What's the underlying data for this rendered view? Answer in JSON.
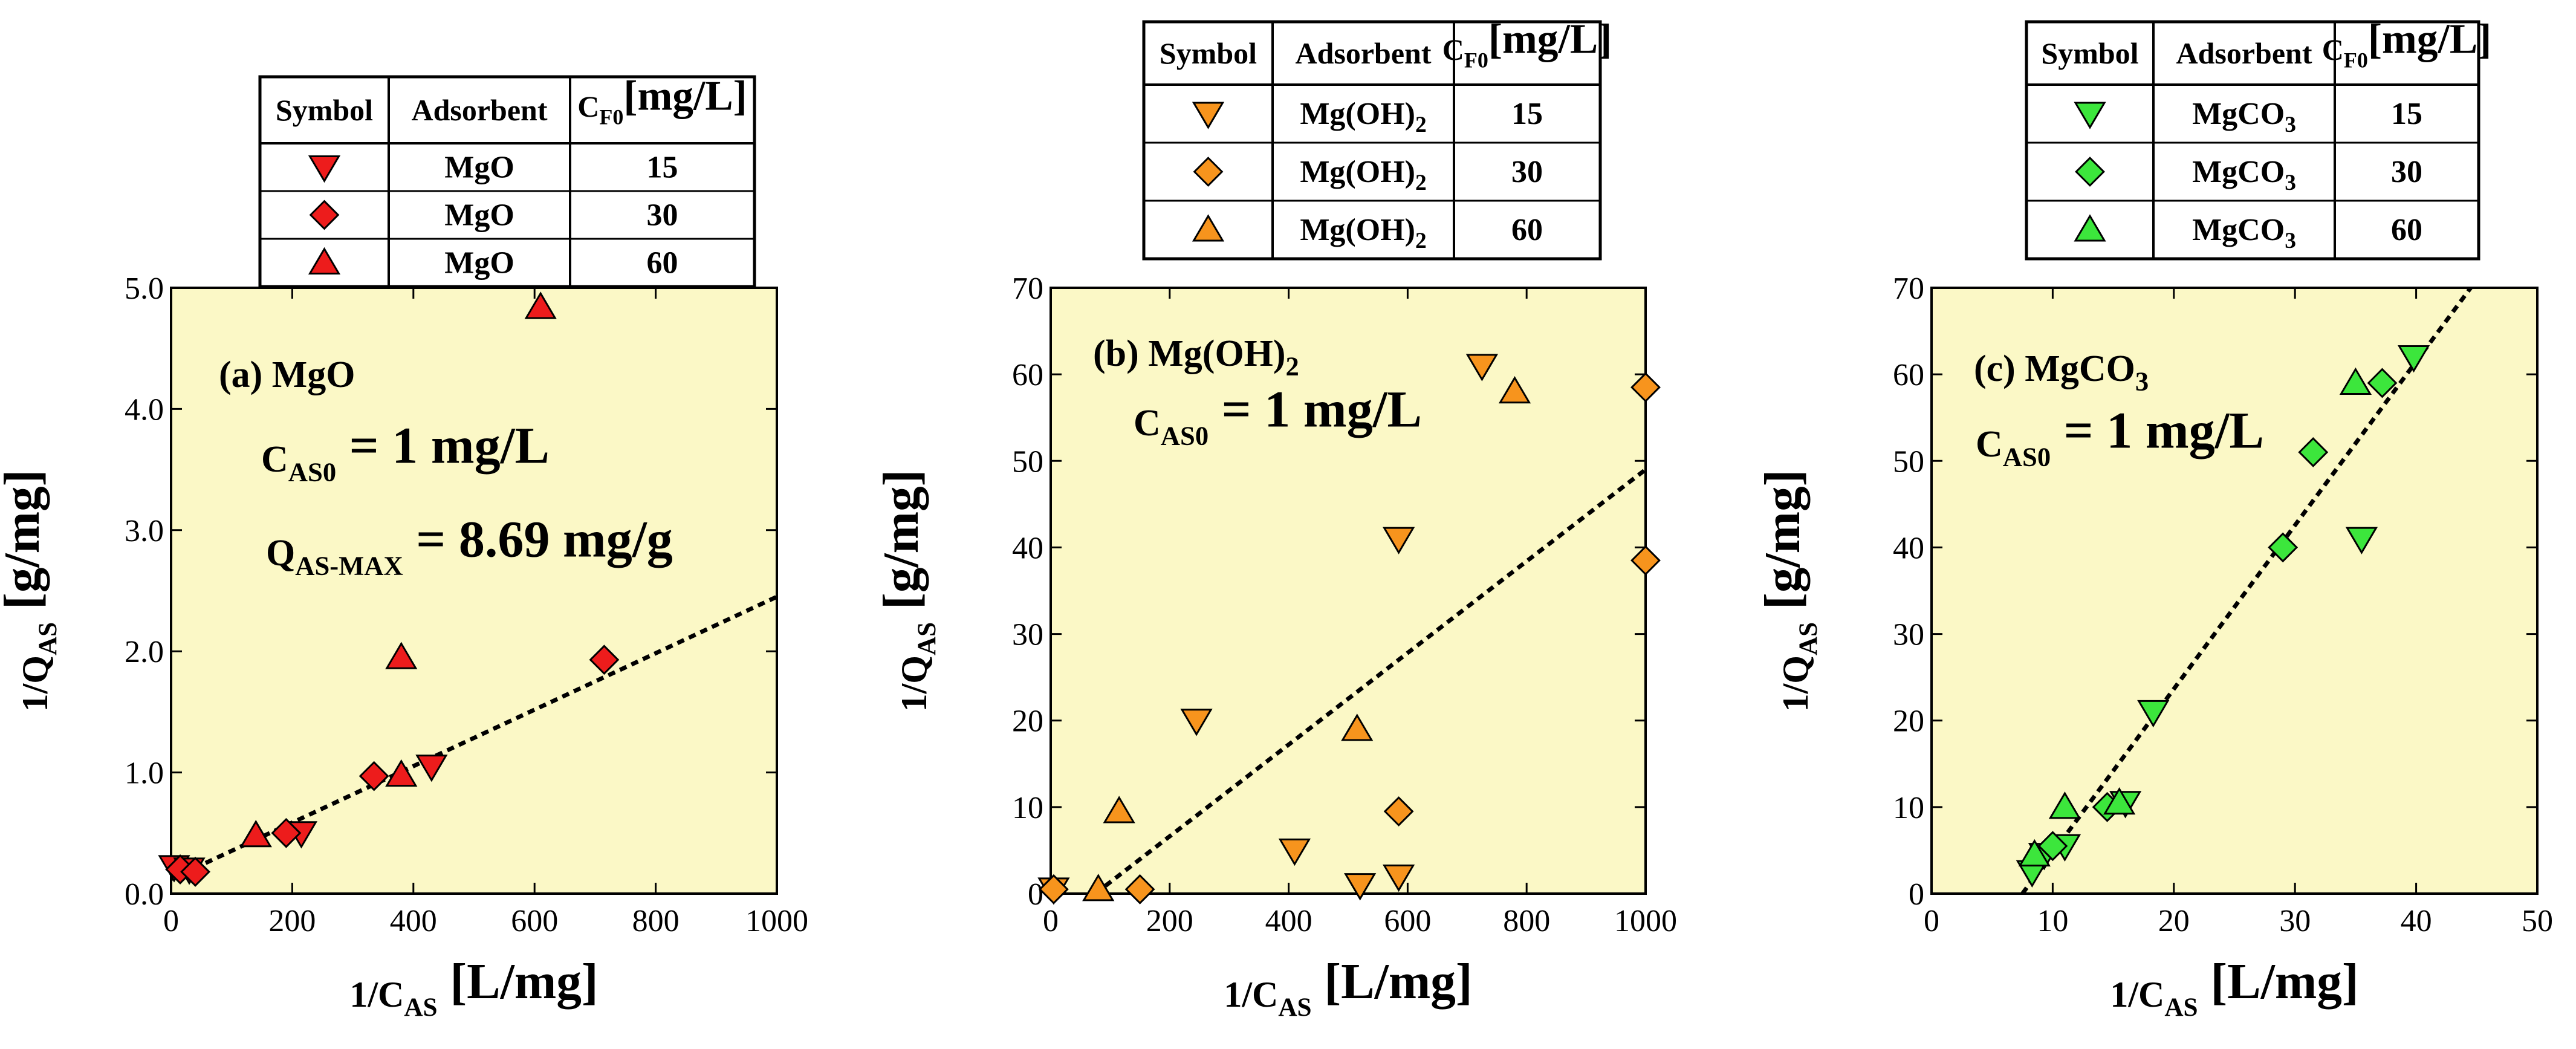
{
  "colors": {
    "background": "#fbf8c6",
    "MgO": "#ed1c1c",
    "Mg(OH)2": "#f7941d",
    "MgCO3": "#3ce63c",
    "fit": "#000000"
  },
  "chart_data": [
    {
      "type": "scatter",
      "panel_label": "(a) MgO",
      "label_main": "(a) MgO",
      "annotations": [
        {
          "main": "C",
          "sub": "AS0",
          "rest": " = 1 mg/L"
        },
        {
          "main": "Q",
          "sub": "AS-MAX",
          "rest": " = 8.69 mg/g"
        }
      ],
      "xlabel": {
        "main": "1/C",
        "sub": "AS",
        "rest": "  [L/mg]"
      },
      "ylabel": {
        "main": "1/Q",
        "sub": "AS",
        "rest": "  [g/mg]"
      },
      "xlim": [
        0,
        1000
      ],
      "ylim": [
        0,
        5
      ],
      "xticks": [
        0,
        200,
        400,
        600,
        800,
        1000
      ],
      "yticks": [
        0,
        1,
        2,
        3,
        4,
        5
      ],
      "ytick_labels": [
        "0.0",
        "1.0",
        "2.0",
        "3.0",
        "4.0",
        "5.0"
      ],
      "xtick_labels": [
        "0",
        "200",
        "400",
        "600",
        "800",
        "1000"
      ],
      "table": {
        "headers": [
          "Symbol",
          "Adsorbent",
          "C",
          "F0",
          "[mg/L]"
        ],
        "rows": [
          {
            "marker": "triangle-down",
            "adsorbent": "MgO",
            "sub": "",
            "cf0": "15"
          },
          {
            "marker": "diamond",
            "adsorbent": "MgO",
            "sub": "",
            "cf0": "30"
          },
          {
            "marker": "triangle-up",
            "adsorbent": "MgO",
            "sub": "",
            "cf0": "60"
          }
        ]
      },
      "series": [
        {
          "name": "MgO 15 mg/L",
          "marker": "triangle-down",
          "points": [
            [
              5,
              0.22
            ],
            [
              30,
              0.2
            ],
            [
              215,
              0.5
            ],
            [
              430,
              1.05
            ]
          ]
        },
        {
          "name": "MgO 30 mg/L",
          "marker": "diamond",
          "points": [
            [
              15,
              0.2
            ],
            [
              40,
              0.18
            ],
            [
              190,
              0.5
            ],
            [
              335,
              0.97
            ],
            [
              715,
              1.93
            ]
          ]
        },
        {
          "name": "MgO 60 mg/L",
          "marker": "triangle-up",
          "points": [
            [
              140,
              0.48
            ],
            [
              380,
              0.98
            ],
            [
              380,
              1.95
            ],
            [
              610,
              4.84
            ]
          ]
        }
      ],
      "fit_line": {
        "x": [
          0,
          1000
        ],
        "y": [
          0.12,
          2.45
        ]
      }
    },
    {
      "type": "scatter",
      "panel_label": "(b) Mg(OH)2",
      "label_main": "(b) Mg(OH)",
      "label_sub": "2",
      "annotations": [
        {
          "main": "C",
          "sub": "AS0",
          "rest": " = 1 mg/L"
        }
      ],
      "xlabel": {
        "main": "1/C",
        "sub": "AS",
        "rest": "  [L/mg]"
      },
      "ylabel": {
        "main": "1/Q",
        "sub": "AS",
        "rest": "  [g/mg]"
      },
      "xlim": [
        0,
        1000
      ],
      "ylim": [
        0,
        70
      ],
      "xticks": [
        0,
        200,
        400,
        600,
        800,
        1000
      ],
      "yticks": [
        0,
        10,
        20,
        30,
        40,
        50,
        60,
        70
      ],
      "ytick_labels": [
        "0",
        "10",
        "20",
        "30",
        "40",
        "50",
        "60",
        "70"
      ],
      "xtick_labels": [
        "0",
        "200",
        "400",
        "600",
        "800",
        "1000"
      ],
      "table": {
        "headers": [
          "Symbol",
          "Adsorbent",
          "C",
          "F0",
          "[mg/L]"
        ],
        "rows": [
          {
            "marker": "triangle-down",
            "adsorbent": "Mg(OH)",
            "sub": "2",
            "cf0": "15"
          },
          {
            "marker": "diamond",
            "adsorbent": "Mg(OH)",
            "sub": "2",
            "cf0": "30"
          },
          {
            "marker": "triangle-up",
            "adsorbent": "Mg(OH)",
            "sub": "2",
            "cf0": "60"
          }
        ]
      },
      "series": [
        {
          "name": "Mg(OH)2 15 mg/L",
          "marker": "triangle-down",
          "points": [
            [
              5,
              0.5
            ],
            [
              245,
              20
            ],
            [
              410,
              5
            ],
            [
              520,
              1
            ],
            [
              585,
              41
            ],
            [
              585,
              2
            ],
            [
              725,
              61
            ]
          ]
        },
        {
          "name": "Mg(OH)2 30 mg/L",
          "marker": "diamond",
          "points": [
            [
              5,
              0.5
            ],
            [
              150,
              0.5
            ],
            [
              585,
              9.5
            ],
            [
              1000,
              58.5
            ],
            [
              1000,
              38.5
            ]
          ]
        },
        {
          "name": "Mg(OH)2 60 mg/L",
          "marker": "triangle-up",
          "points": [
            [
              80,
              0.5
            ],
            [
              115,
              9.5
            ],
            [
              515,
              19
            ],
            [
              780,
              58
            ]
          ]
        }
      ],
      "fit_line": {
        "x": [
          75,
          1000
        ],
        "y": [
          0,
          49
        ]
      }
    },
    {
      "type": "scatter",
      "panel_label": "(c) MgCO3",
      "label_main": "(c) MgCO",
      "label_sub": "3",
      "annotations": [
        {
          "main": "C",
          "sub": "AS0",
          "rest": " = 1 mg/L"
        }
      ],
      "xlabel": {
        "main": "1/C",
        "sub": "AS",
        "rest": "  [L/mg]"
      },
      "ylabel": {
        "main": "1/Q",
        "sub": "AS",
        "rest": "  [g/mg]"
      },
      "xlim": [
        0,
        50
      ],
      "ylim": [
        0,
        70
      ],
      "xticks": [
        0,
        10,
        20,
        30,
        40,
        50
      ],
      "yticks": [
        0,
        10,
        20,
        30,
        40,
        50,
        60,
        70
      ],
      "ytick_labels": [
        "0",
        "10",
        "20",
        "30",
        "40",
        "50",
        "60",
        "70"
      ],
      "xtick_labels": [
        "0",
        "10",
        "20",
        "30",
        "40",
        "50"
      ],
      "table": {
        "headers": [
          "Symbol",
          "Adsorbent",
          "C",
          "F0",
          "[mg/L]"
        ],
        "rows": [
          {
            "marker": "triangle-down",
            "adsorbent": "MgCO",
            "sub": "3",
            "cf0": "15"
          },
          {
            "marker": "diamond",
            "adsorbent": "MgCO",
            "sub": "3",
            "cf0": "30"
          },
          {
            "marker": "triangle-up",
            "adsorbent": "MgCO",
            "sub": "3",
            "cf0": "60"
          }
        ]
      },
      "series": [
        {
          "name": "MgCO3 15 mg/L",
          "marker": "triangle-down",
          "points": [
            [
              8.3,
              2.5
            ],
            [
              9.3,
              4.5
            ],
            [
              11,
              5.5
            ],
            [
              16,
              10.5
            ],
            [
              18.3,
              21
            ],
            [
              35.5,
              41
            ],
            [
              39.8,
              62
            ]
          ]
        },
        {
          "name": "MgCO3 30 mg/L",
          "marker": "diamond",
          "points": [
            [
              10,
              5.5
            ],
            [
              14.5,
              10
            ],
            [
              29,
              40
            ],
            [
              31.5,
              51
            ],
            [
              37.2,
              59
            ]
          ]
        },
        {
          "name": "MgCO3 60 mg/L",
          "marker": "triangle-up",
          "points": [
            [
              8.5,
              4.5
            ],
            [
              11,
              10
            ],
            [
              15.5,
              10.5
            ],
            [
              35,
              59
            ]
          ]
        }
      ],
      "fit_line": {
        "x": [
          7.5,
          44.5
        ],
        "y": [
          0,
          70
        ]
      }
    }
  ]
}
